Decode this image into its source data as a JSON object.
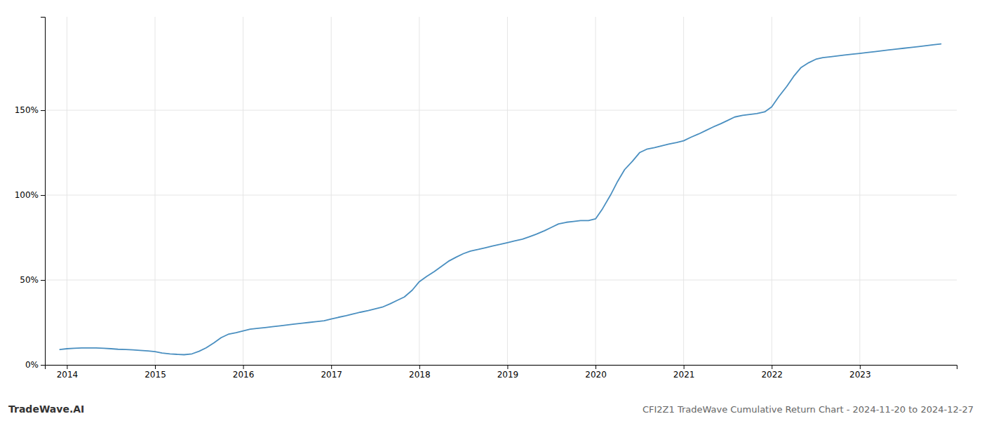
{
  "chart_data": {
    "type": "line",
    "x": [
      2013.92,
      2014.0,
      2014.08,
      2014.17,
      2014.25,
      2014.33,
      2014.42,
      2014.5,
      2014.58,
      2014.67,
      2014.75,
      2014.83,
      2014.92,
      2015.0,
      2015.08,
      2015.17,
      2015.25,
      2015.33,
      2015.42,
      2015.5,
      2015.58,
      2015.67,
      2015.75,
      2015.83,
      2015.92,
      2016.0,
      2016.08,
      2016.17,
      2016.25,
      2016.33,
      2016.42,
      2016.5,
      2016.58,
      2016.67,
      2016.75,
      2016.83,
      2016.92,
      2017.0,
      2017.08,
      2017.17,
      2017.25,
      2017.33,
      2017.42,
      2017.5,
      2017.58,
      2017.67,
      2017.75,
      2017.83,
      2017.92,
      2018.0,
      2018.08,
      2018.17,
      2018.25,
      2018.33,
      2018.42,
      2018.5,
      2018.58,
      2018.67,
      2018.75,
      2018.83,
      2018.92,
      2019.0,
      2019.08,
      2019.17,
      2019.25,
      2019.33,
      2019.42,
      2019.5,
      2019.58,
      2019.67,
      2019.75,
      2019.83,
      2019.92,
      2020.0,
      2020.08,
      2020.17,
      2020.25,
      2020.33,
      2020.42,
      2020.5,
      2020.58,
      2020.67,
      2020.75,
      2020.83,
      2020.92,
      2021.0,
      2021.08,
      2021.17,
      2021.25,
      2021.33,
      2021.42,
      2021.5,
      2021.58,
      2021.67,
      2021.75,
      2021.83,
      2021.92,
      2022.0,
      2022.08,
      2022.17,
      2022.25,
      2022.33,
      2022.42,
      2022.5,
      2022.58,
      2022.67,
      2022.75,
      2022.83,
      2022.92,
      2023.0,
      2023.08,
      2023.17,
      2023.25,
      2023.33,
      2023.42,
      2023.5,
      2023.58,
      2023.67,
      2023.75,
      2023.83,
      2023.92
    ],
    "values": [
      9.0,
      9.5,
      9.8,
      10.0,
      10.0,
      10.0,
      9.8,
      9.5,
      9.2,
      9.0,
      8.8,
      8.5,
      8.2,
      7.8,
      7.0,
      6.5,
      6.2,
      6.0,
      6.5,
      8.0,
      10.0,
      13.0,
      16.0,
      18.0,
      19.0,
      20.0,
      21.0,
      21.5,
      22.0,
      22.5,
      23.0,
      23.5,
      24.0,
      24.5,
      25.0,
      25.5,
      26.0,
      27.0,
      28.0,
      29.0,
      30.0,
      31.0,
      32.0,
      33.0,
      34.0,
      36.0,
      38.0,
      40.0,
      44.0,
      49.0,
      52.0,
      55.0,
      58.0,
      61.0,
      63.5,
      65.5,
      67.0,
      68.0,
      69.0,
      70.0,
      71.0,
      72.0,
      73.0,
      74.0,
      75.5,
      77.0,
      79.0,
      81.0,
      83.0,
      84.0,
      84.5,
      85.0,
      85.0,
      86.0,
      92.0,
      100.0,
      108.0,
      115.0,
      120.0,
      125.0,
      127.0,
      128.0,
      129.0,
      130.0,
      131.0,
      132.0,
      134.0,
      136.0,
      138.0,
      140.0,
      142.0,
      144.0,
      146.0,
      147.0,
      147.5,
      148.0,
      149.0,
      152.0,
      158.0,
      164.0,
      170.0,
      175.0,
      178.0,
      180.0,
      181.0,
      181.5,
      182.0,
      182.5,
      183.0,
      183.5,
      184.0,
      184.5,
      185.0,
      185.5,
      186.0,
      186.5,
      187.0,
      187.5,
      188.0,
      188.5,
      189.0
    ],
    "color": "#4a8fc0",
    "xlim": [
      2013.75,
      2024.1
    ],
    "ylim": [
      0,
      205
    ],
    "xticks": [
      2014,
      2015,
      2016,
      2017,
      2018,
      2019,
      2020,
      2021,
      2022,
      2023
    ],
    "yticks": [
      {
        "value": 0,
        "label": "0%"
      },
      {
        "value": 50,
        "label": "50%"
      },
      {
        "value": 100,
        "label": "100%"
      },
      {
        "value": 150,
        "label": "150%"
      }
    ],
    "grid": true,
    "annotations": [
      "TradeWave.AI",
      "CFI2Z1 TradeWave Cumulative Return Chart - 2024-11-20 to 2024-12-27"
    ]
  }
}
